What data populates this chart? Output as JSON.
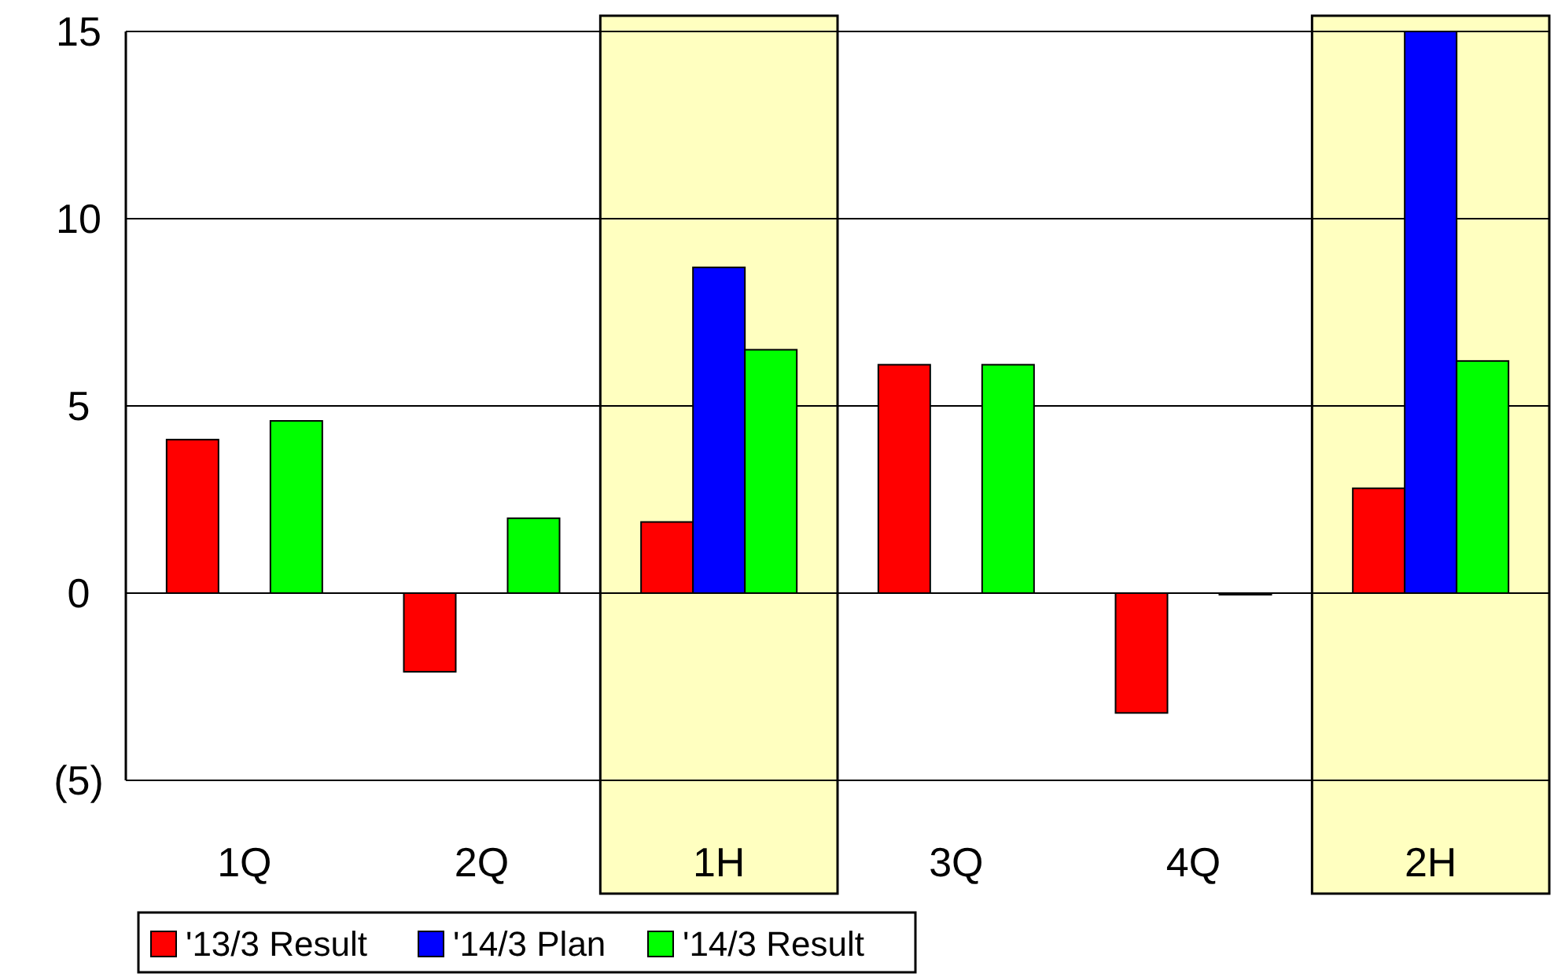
{
  "chart_data": {
    "type": "bar",
    "categories": [
      "1Q",
      "2Q",
      "1H",
      "3Q",
      "4Q",
      "2H"
    ],
    "series": [
      {
        "name": "'13/3 Result",
        "color": "#ff0000",
        "values": [
          4.1,
          -2.1,
          1.9,
          6.1,
          -3.2,
          2.8
        ]
      },
      {
        "name": "'14/3 Plan",
        "color": "#0000ff",
        "values": [
          null,
          null,
          8.7,
          null,
          null,
          15.0
        ]
      },
      {
        "name": "'14/3 Result",
        "color": "#00ff00",
        "values": [
          4.6,
          2.0,
          6.5,
          6.1,
          0.0,
          6.2
        ]
      }
    ],
    "ylim": [
      -5,
      15
    ],
    "yticks": [
      {
        "value": -5,
        "label": "(5)"
      },
      0,
      5,
      10,
      15
    ],
    "grid": "y",
    "bands": [
      {
        "axis": "x",
        "from": "1H",
        "to": "1H",
        "color": "#ffffc0"
      },
      {
        "axis": "x",
        "from": "2H",
        "to": "2H",
        "color": "#ffffc0"
      }
    ],
    "legend": "bottom left"
  }
}
